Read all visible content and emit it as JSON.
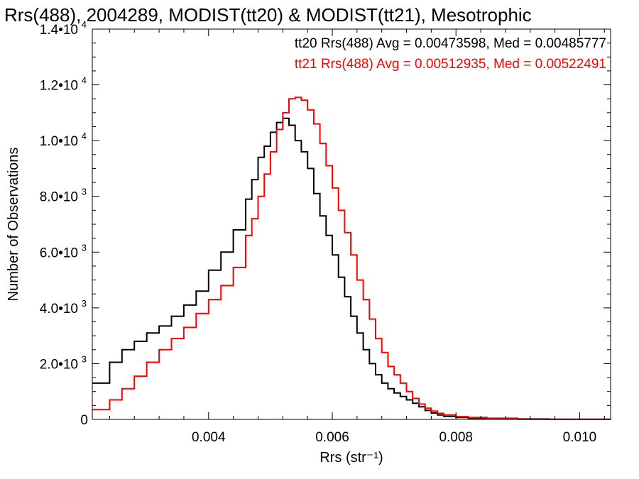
{
  "chart_data": {
    "type": "line",
    "step": true,
    "title": "Rrs(488), 2004289, MODIST(tt20) & MODIST(tt21), Mesotrophic",
    "xlabel": "Rrs (str⁻¹)",
    "ylabel": "Number of Observations",
    "xlim": [
      0.00212,
      0.0105
    ],
    "ylim": [
      0,
      14000
    ],
    "grid": false,
    "legend_position": "top-right",
    "x_ticks": [
      {
        "value": 0.004,
        "label": "0.004"
      },
      {
        "value": 0.006,
        "label": "0.006"
      },
      {
        "value": 0.008,
        "label": "0.008"
      },
      {
        "value": 0.01,
        "label": "0.010"
      }
    ],
    "y_ticks": [
      {
        "value": 0,
        "label": "0",
        "exp": ""
      },
      {
        "value": 2000,
        "label": "2.0•10",
        "exp": "3"
      },
      {
        "value": 4000,
        "label": "4.0•10",
        "exp": "3"
      },
      {
        "value": 6000,
        "label": "6.0•10",
        "exp": "3"
      },
      {
        "value": 8000,
        "label": "8.0•10",
        "exp": "3"
      },
      {
        "value": 10000,
        "label": "1.0•10",
        "exp": "4"
      },
      {
        "value": 12000,
        "label": "1.2•10",
        "exp": "4"
      },
      {
        "value": 14000,
        "label": "1.4•10",
        "exp": "4"
      }
    ],
    "series": [
      {
        "name": "tt20 Rrs(488) Avg = 0.00473598, Med = 0.00485777",
        "color": "#000000",
        "points": [
          [
            0.00212,
            1300
          ],
          [
            0.0024,
            2050
          ],
          [
            0.0026,
            2500
          ],
          [
            0.0028,
            2800
          ],
          [
            0.003,
            3100
          ],
          [
            0.0032,
            3350
          ],
          [
            0.0034,
            3700
          ],
          [
            0.0036,
            4100
          ],
          [
            0.0038,
            4600
          ],
          [
            0.004,
            5350
          ],
          [
            0.0042,
            6000
          ],
          [
            0.0044,
            6800
          ],
          [
            0.0046,
            7900
          ],
          [
            0.0047,
            8600
          ],
          [
            0.0048,
            9400
          ],
          [
            0.0049,
            9800
          ],
          [
            0.005,
            10300
          ],
          [
            0.0051,
            10650
          ],
          [
            0.0052,
            10800
          ],
          [
            0.0053,
            10550
          ],
          [
            0.0054,
            10000
          ],
          [
            0.0055,
            9600
          ],
          [
            0.0056,
            9000
          ],
          [
            0.0057,
            8100
          ],
          [
            0.0058,
            7300
          ],
          [
            0.0059,
            6600
          ],
          [
            0.006,
            5900
          ],
          [
            0.0061,
            5100
          ],
          [
            0.0062,
            4400
          ],
          [
            0.0063,
            3700
          ],
          [
            0.0064,
            3100
          ],
          [
            0.0065,
            2500
          ],
          [
            0.0066,
            2000
          ],
          [
            0.0067,
            1600
          ],
          [
            0.0068,
            1300
          ],
          [
            0.0069,
            1100
          ],
          [
            0.007,
            950
          ],
          [
            0.0071,
            820
          ],
          [
            0.0072,
            700
          ],
          [
            0.0073,
            580
          ],
          [
            0.0074,
            450
          ],
          [
            0.0075,
            320
          ],
          [
            0.0076,
            230
          ],
          [
            0.0077,
            160
          ],
          [
            0.0078,
            110
          ],
          [
            0.008,
            70
          ],
          [
            0.0082,
            40
          ],
          [
            0.0085,
            20
          ],
          [
            0.009,
            8
          ],
          [
            0.0095,
            3
          ],
          [
            0.0105,
            0
          ]
        ]
      },
      {
        "name": "tt21 Rrs(488) Avg = 0.00512935, Med = 0.00522491",
        "color": "#ff0000",
        "points": [
          [
            0.00212,
            350
          ],
          [
            0.0024,
            700
          ],
          [
            0.0026,
            1100
          ],
          [
            0.0028,
            1550
          ],
          [
            0.003,
            2050
          ],
          [
            0.0032,
            2500
          ],
          [
            0.0034,
            2900
          ],
          [
            0.0036,
            3300
          ],
          [
            0.0038,
            3800
          ],
          [
            0.004,
            4300
          ],
          [
            0.0042,
            4800
          ],
          [
            0.0044,
            5450
          ],
          [
            0.0046,
            6600
          ],
          [
            0.0047,
            7200
          ],
          [
            0.0048,
            8000
          ],
          [
            0.0049,
            8800
          ],
          [
            0.005,
            9600
          ],
          [
            0.0051,
            10400
          ],
          [
            0.0052,
            11000
          ],
          [
            0.0053,
            11500
          ],
          [
            0.0054,
            11550
          ],
          [
            0.0055,
            11450
          ],
          [
            0.0056,
            11100
          ],
          [
            0.0057,
            10600
          ],
          [
            0.0058,
            9900
          ],
          [
            0.0059,
            9100
          ],
          [
            0.006,
            8300
          ],
          [
            0.0061,
            7500
          ],
          [
            0.0062,
            6700
          ],
          [
            0.0063,
            5900
          ],
          [
            0.0064,
            5000
          ],
          [
            0.0065,
            4300
          ],
          [
            0.0066,
            3600
          ],
          [
            0.0067,
            2900
          ],
          [
            0.0068,
            2400
          ],
          [
            0.0069,
            1900
          ],
          [
            0.007,
            1600
          ],
          [
            0.0071,
            1300
          ],
          [
            0.0072,
            1000
          ],
          [
            0.0073,
            750
          ],
          [
            0.0074,
            550
          ],
          [
            0.0075,
            400
          ],
          [
            0.0076,
            300
          ],
          [
            0.0077,
            220
          ],
          [
            0.0078,
            160
          ],
          [
            0.008,
            100
          ],
          [
            0.0082,
            70
          ],
          [
            0.0085,
            40
          ],
          [
            0.009,
            20
          ],
          [
            0.0095,
            8
          ],
          [
            0.0105,
            0
          ]
        ]
      }
    ]
  }
}
